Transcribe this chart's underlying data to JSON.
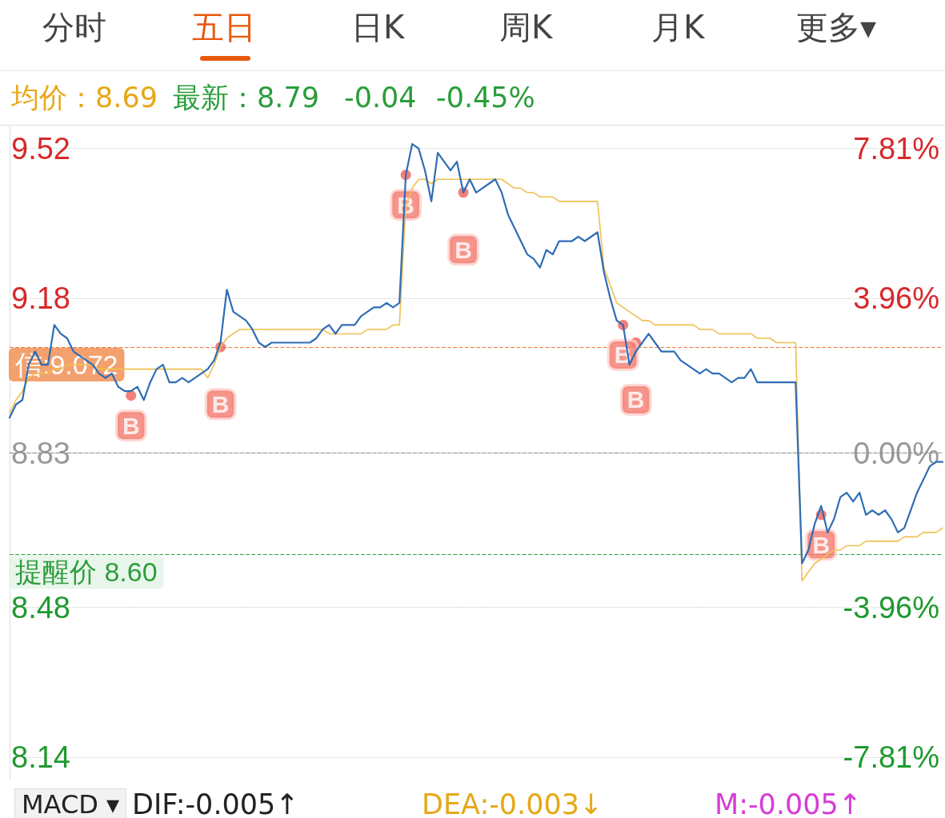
{
  "chart_data": {
    "type": "line",
    "annotations": [
      "分时",
      "五日",
      "日K",
      "周K",
      "月K",
      "更多▾",
      "均价：8.69",
      "最新：8.79",
      "-0.04",
      "-0.45%",
      "MACD ▾",
      "DIF:-0.005↑",
      "DEA:-0.003↓",
      "M:-0.005↑"
    ],
    "categories": [
      null,
      null,
      null,
      null,
      null,
      null,
      null,
      null,
      null,
      null,
      null,
      null,
      null,
      null,
      null,
      null,
      null,
      null,
      null,
      null,
      null,
      null,
      null,
      null,
      null,
      null,
      null,
      null,
      null,
      null,
      null,
      null,
      null,
      null,
      null,
      null,
      null,
      null,
      null,
      null,
      null,
      null,
      null,
      null,
      null,
      null,
      null,
      null,
      null,
      null,
      null,
      null,
      null,
      null,
      null,
      null,
      null,
      null,
      null,
      null,
      null,
      null,
      null,
      null,
      null,
      null,
      null,
      null,
      null,
      null,
      null,
      null,
      null,
      null,
      null,
      null,
      null,
      null,
      null,
      null,
      null,
      null,
      null,
      null,
      null,
      null,
      null,
      null,
      null,
      null,
      null,
      null,
      null,
      null,
      null,
      null,
      null,
      null,
      null,
      null,
      null,
      null,
      null,
      null,
      null,
      null,
      null,
      null,
      null,
      null,
      null,
      null,
      null,
      null,
      null,
      null,
      null,
      null,
      null,
      null,
      null,
      null,
      null,
      null,
      null,
      null,
      null,
      null,
      null,
      null,
      null,
      null,
      null,
      null,
      null,
      null,
      null,
      null,
      null,
      null,
      null,
      null,
      null,
      null,
      null,
      null,
      null
    ],
    "series": [
      {
        "color": "#2f6db5",
        "values": [
          8.91,
          8.94,
          8.95,
          9.03,
          9.06,
          9.03,
          9.03,
          9.12,
          9.1,
          9.09,
          9.06,
          9.05,
          9.04,
          9.03,
          9.01,
          9.0,
          9.01,
          8.98,
          8.97,
          8.97,
          8.98,
          8.95,
          8.99,
          9.02,
          9.03,
          8.99,
          8.99,
          9.0,
          8.99,
          9.0,
          9.01,
          9.02,
          9.04,
          9.08,
          9.2,
          9.15,
          9.14,
          9.13,
          9.11,
          9.08,
          9.07,
          9.08,
          9.08,
          9.08,
          9.08,
          9.08,
          9.08,
          9.08,
          9.09,
          9.11,
          9.12,
          9.1,
          9.12,
          9.12,
          9.12,
          9.14,
          9.15,
          9.16,
          9.16,
          9.17,
          9.16,
          9.17,
          9.46,
          9.53,
          9.52,
          9.47,
          9.4,
          9.51,
          9.49,
          9.47,
          9.49,
          9.42,
          9.45,
          9.42,
          9.43,
          9.44,
          9.45,
          9.42,
          9.37,
          9.34,
          9.31,
          9.28,
          9.27,
          9.25,
          9.29,
          9.28,
          9.31,
          9.31,
          9.31,
          9.32,
          9.31,
          9.32,
          9.33,
          9.24,
          9.18,
          9.13,
          9.12,
          9.03,
          9.06,
          9.08,
          9.1,
          9.08,
          9.06,
          9.06,
          9.06,
          9.04,
          9.03,
          9.02,
          9.01,
          9.02,
          9.01,
          9.01,
          9.0,
          8.99,
          9.0,
          9.0,
          9.02,
          8.99,
          8.99,
          8.99,
          8.99,
          8.99,
          8.99,
          8.99,
          8.58,
          8.61,
          8.67,
          8.71,
          8.65,
          8.68,
          8.73,
          8.74,
          8.72,
          8.74,
          8.69,
          8.7,
          8.69,
          8.7,
          8.68,
          8.65,
          8.66,
          8.7,
          8.74,
          8.77,
          8.8,
          8.81,
          8.81
        ]
      },
      {
        "color": "#f0c050",
        "values": [
          8.92,
          8.95,
          8.97,
          9.0,
          9.01,
          9.01,
          9.01,
          9.02,
          9.02,
          9.03,
          9.03,
          9.03,
          9.03,
          9.03,
          9.02,
          9.02,
          9.02,
          9.02,
          9.02,
          9.02,
          9.02,
          9.02,
          9.02,
          9.02,
          9.02,
          9.02,
          9.02,
          9.02,
          9.02,
          9.02,
          9.02,
          9.0,
          9.03,
          9.07,
          9.09,
          9.1,
          9.11,
          9.11,
          9.11,
          9.11,
          9.11,
          9.11,
          9.11,
          9.11,
          9.11,
          9.11,
          9.11,
          9.11,
          9.11,
          9.11,
          9.1,
          9.1,
          9.1,
          9.1,
          9.1,
          9.1,
          9.11,
          9.11,
          9.11,
          9.11,
          9.12,
          9.12,
          9.39,
          9.43,
          9.45,
          9.45,
          9.44,
          9.45,
          9.45,
          9.45,
          9.45,
          9.45,
          9.45,
          9.45,
          9.45,
          9.45,
          9.45,
          9.45,
          9.44,
          9.43,
          9.43,
          9.42,
          9.42,
          9.41,
          9.41,
          9.41,
          9.4,
          9.4,
          9.4,
          9.4,
          9.4,
          9.4,
          9.4,
          9.25,
          9.21,
          9.17,
          9.16,
          9.15,
          9.14,
          9.13,
          9.13,
          9.12,
          9.12,
          9.12,
          9.12,
          9.12,
          9.12,
          9.12,
          9.11,
          9.11,
          9.11,
          9.1,
          9.1,
          9.1,
          9.1,
          9.1,
          9.1,
          9.09,
          9.09,
          9.09,
          9.08,
          9.08,
          9.08,
          9.08,
          8.54,
          8.56,
          8.58,
          8.59,
          8.6,
          8.61,
          8.61,
          8.62,
          8.62,
          8.62,
          8.63,
          8.63,
          8.63,
          8.63,
          8.63,
          8.63,
          8.64,
          8.64,
          8.64,
          8.65,
          8.65,
          8.65,
          8.66
        ]
      },
      {
        "type": "scatter",
        "color": "#f0605a",
        "marker": "circle",
        "values": [
          null,
          null,
          null,
          null,
          null,
          null,
          null,
          null,
          null,
          null,
          null,
          null,
          null,
          null,
          null,
          null,
          null,
          null,
          null,
          8.96,
          null,
          null,
          null,
          null,
          null,
          null,
          null,
          null,
          null,
          null,
          null,
          null,
          null,
          9.07,
          null,
          null,
          null,
          null,
          null,
          null,
          null,
          null,
          null,
          null,
          null,
          null,
          null,
          null,
          null,
          null,
          null,
          null,
          null,
          null,
          null,
          null,
          null,
          null,
          null,
          null,
          null,
          null,
          9.46,
          null,
          null,
          null,
          null,
          null,
          null,
          null,
          null,
          9.42,
          null,
          null,
          null,
          null,
          null,
          null,
          null,
          null,
          null,
          null,
          null,
          null,
          null,
          null,
          null,
          null,
          null,
          null,
          null,
          null,
          null,
          null,
          null,
          null,
          9.12,
          null,
          9.08,
          null,
          null,
          null,
          null,
          null,
          null,
          null,
          null,
          null,
          null,
          null,
          null,
          null,
          null,
          null,
          null,
          null,
          null,
          null,
          null,
          null,
          null,
          null,
          null,
          null,
          null,
          null,
          null,
          8.69,
          null,
          null,
          null,
          null,
          null,
          null,
          null,
          null,
          null,
          null,
          null,
          null,
          null,
          null,
          null,
          null,
          null,
          null,
          null
        ],
        "value_labels": [
          null,
          null,
          null,
          null,
          null,
          null,
          null,
          null,
          null,
          null,
          null,
          null,
          null,
          null,
          null,
          null,
          null,
          null,
          null,
          "B",
          null,
          null,
          null,
          null,
          null,
          null,
          null,
          null,
          null,
          null,
          null,
          null,
          null,
          "B",
          null,
          null,
          null,
          null,
          null,
          null,
          null,
          null,
          null,
          null,
          null,
          null,
          null,
          null,
          null,
          null,
          null,
          null,
          null,
          null,
          null,
          null,
          null,
          null,
          null,
          null,
          null,
          null,
          "B",
          null,
          null,
          null,
          null,
          null,
          null,
          null,
          null,
          "B",
          null,
          null,
          null,
          null,
          null,
          null,
          null,
          null,
          null,
          null,
          null,
          null,
          null,
          null,
          null,
          null,
          null,
          null,
          null,
          null,
          null,
          null,
          null,
          null,
          "B",
          null,
          "B",
          null,
          null,
          null,
          null,
          null,
          null,
          null,
          null,
          null,
          null,
          null,
          null,
          null,
          null,
          null,
          null,
          null,
          null,
          null,
          null,
          null,
          null,
          null,
          null,
          null,
          null,
          null,
          null,
          "B",
          null,
          null,
          null,
          null,
          null,
          null,
          null,
          null,
          null,
          null,
          null,
          null,
          null,
          null,
          null,
          null,
          null,
          null,
          null
        ]
      }
    ],
    "ylim": [
      8.09,
      9.57
    ],
    "yticks": [
      9.52,
      9.18,
      8.83,
      8.48,
      8.14
    ],
    "y2lim": [
      -8.38,
      8.38
    ],
    "y2ticks": [
      {
        "value": 7.81,
        "label": "7.81%"
      },
      {
        "value": 3.96,
        "label": "3.96%"
      },
      {
        "value": 0,
        "label": "0.00%"
      },
      {
        "value": -3.96,
        "label": "-3.96%"
      },
      {
        "value": -7.81,
        "label": "-7.81%"
      }
    ],
    "ref_lines": [
      {
        "axis": "y",
        "value": 9.072,
        "label": "信:9.072",
        "color": "#e8793a",
        "line_style": "dashed"
      },
      {
        "axis": "y",
        "value": 8.83,
        "label": null,
        "color": "#8c8c8c",
        "line_style": "dashed"
      },
      {
        "axis": "y",
        "value": 8.6,
        "label": "提醒价 8.60",
        "color": "#2e9e3e",
        "line_style": "dashed"
      }
    ],
    "grid": "y",
    "marker": "none",
    "line_style": "solid"
  }
}
